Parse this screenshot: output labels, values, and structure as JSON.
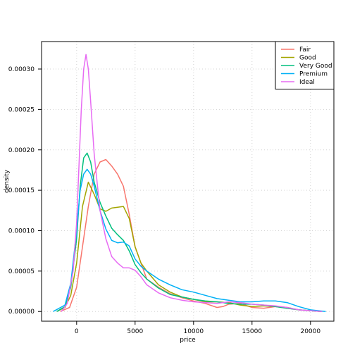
{
  "chart_data": {
    "type": "line",
    "title": "",
    "xlabel": "price",
    "ylabel": "density",
    "xlim": [
      -3000,
      22000
    ],
    "ylim": [
      -1.2e-05,
      0.000334
    ],
    "x_ticks": [
      0,
      5000,
      10000,
      15000,
      20000
    ],
    "x_tick_labels": [
      "0",
      "5000",
      "10000",
      "15000",
      "20000"
    ],
    "y_ticks": [
      0,
      5e-05,
      0.0001,
      0.00015,
      0.0002,
      0.00025,
      0.0003
    ],
    "y_tick_labels": [
      "0.00000",
      "0.00005",
      "0.00010",
      "0.00015",
      "0.00020",
      "0.00025",
      "0.00030"
    ],
    "grid": true,
    "legend_position": "top-right",
    "series": [
      {
        "name": "Fair",
        "color": "#f8766d",
        "x": [
          -1400,
          -600,
          0,
          500,
          1000,
          1500,
          2000,
          2500,
          3000,
          3500,
          4000,
          4500,
          5000,
          5500,
          6000,
          7000,
          8000,
          9000,
          10000,
          11000,
          12000,
          12500,
          13000,
          14000,
          15000,
          16000,
          17000,
          18000,
          19000,
          20000,
          21000
        ],
        "y": [
          0,
          5e-06,
          3e-05,
          8e-05,
          0.00013,
          0.00017,
          0.000185,
          0.000188,
          0.00018,
          0.00017,
          0.000155,
          0.00012,
          8e-05,
          6e-05,
          4e-05,
          3e-05,
          2.2e-05,
          1.7e-05,
          1.3e-05,
          1e-05,
          5e-06,
          6e-06,
          9e-06,
          1e-05,
          5e-06,
          4e-06,
          6e-06,
          4e-06,
          2e-06,
          1e-06,
          0
        ]
      },
      {
        "name": "Good",
        "color": "#a3a500",
        "x": [
          -1700,
          -1000,
          -500,
          0,
          500,
          1000,
          1500,
          2000,
          2500,
          3000,
          3500,
          4000,
          4500,
          5000,
          5500,
          6000,
          7000,
          8000,
          9000,
          10000,
          11000,
          12000,
          13000,
          14000,
          15000,
          16000,
          17000,
          18000,
          19000,
          20000,
          21000
        ],
        "y": [
          0,
          5e-06,
          2e-05,
          6e-05,
          0.00013,
          0.00016,
          0.000145,
          0.000127,
          0.000124,
          0.000128,
          0.000129,
          0.00013,
          0.000115,
          8e-05,
          6e-05,
          5e-05,
          3.3e-05,
          2.4e-05,
          1.8e-05,
          1.5e-05,
          1.2e-05,
          1.2e-05,
          1.1e-05,
          8e-06,
          6e-06,
          7e-06,
          6e-06,
          5e-06,
          2e-06,
          1e-06,
          0
        ]
      },
      {
        "name": "Very Good",
        "color": "#00bf7d",
        "x": [
          -1700,
          -1000,
          -500,
          0,
          300,
          600,
          900,
          1200,
          1500,
          2000,
          2500,
          3000,
          3500,
          4000,
          4500,
          5000,
          5500,
          6000,
          7000,
          8000,
          9000,
          10000,
          11000,
          12000,
          13000,
          14000,
          15000,
          16000,
          17000,
          18000,
          19000,
          20000,
          21000
        ],
        "y": [
          0,
          6e-06,
          3e-05,
          9e-05,
          0.000155,
          0.00019,
          0.000196,
          0.000185,
          0.00016,
          0.000135,
          0.000118,
          0.000103,
          9.5e-05,
          8.8e-05,
          7.5e-05,
          5.8e-05,
          4.8e-05,
          4e-05,
          2.9e-05,
          2.1e-05,
          1.8e-05,
          1.5e-05,
          1.3e-05,
          1.2e-05,
          1e-05,
          9e-06,
          9e-06,
          8e-06,
          6e-06,
          4e-06,
          2e-06,
          1e-06,
          0
        ]
      },
      {
        "name": "Premium",
        "color": "#00b0f6",
        "x": [
          -2000,
          -1000,
          -500,
          0,
          300,
          600,
          900,
          1200,
          1500,
          2000,
          2500,
          3000,
          3500,
          4000,
          4500,
          5000,
          5500,
          6000,
          7000,
          8000,
          9000,
          10000,
          11000,
          12000,
          13000,
          14000,
          15000,
          16000,
          17000,
          18000,
          19000,
          20000,
          21300
        ],
        "y": [
          0,
          8e-06,
          3.5e-05,
          0.0001,
          0.00015,
          0.00017,
          0.000176,
          0.00017,
          0.000155,
          0.000125,
          0.000102,
          8.8e-05,
          8.5e-05,
          8.6e-05,
          8.1e-05,
          6.5e-05,
          5.6e-05,
          5e-05,
          4e-05,
          3.3e-05,
          2.7e-05,
          2.4e-05,
          2e-05,
          1.6e-05,
          1.4e-05,
          1.2e-05,
          1.2e-05,
          1.3e-05,
          1.3e-05,
          1.1e-05,
          6e-06,
          2e-06,
          0
        ]
      },
      {
        "name": "Ideal",
        "color": "#e76bf3",
        "x": [
          -1300,
          -800,
          -300,
          0,
          200,
          400,
          600,
          800,
          1000,
          1200,
          1500,
          2000,
          2500,
          3000,
          3500,
          4000,
          4500,
          5000,
          5500,
          6000,
          7000,
          8000,
          9000,
          10000,
          11000,
          12000,
          13000,
          14000,
          15000,
          16000,
          17000,
          18000,
          19000,
          20000,
          21000
        ],
        "y": [
          0,
          1e-05,
          5e-05,
          0.00011,
          0.00018,
          0.00025,
          0.0003,
          0.000318,
          0.0003,
          0.00026,
          0.000195,
          0.000125,
          9e-05,
          6.8e-05,
          6e-05,
          5.4e-05,
          5.4e-05,
          5.1e-05,
          4.3e-05,
          3.3e-05,
          2.3e-05,
          1.7e-05,
          1.4e-05,
          1.2e-05,
          1.1e-05,
          1e-05,
          1.2e-05,
          1.1e-05,
          9e-06,
          8e-06,
          7e-06,
          5e-06,
          2e-06,
          1e-06,
          0
        ]
      }
    ]
  }
}
